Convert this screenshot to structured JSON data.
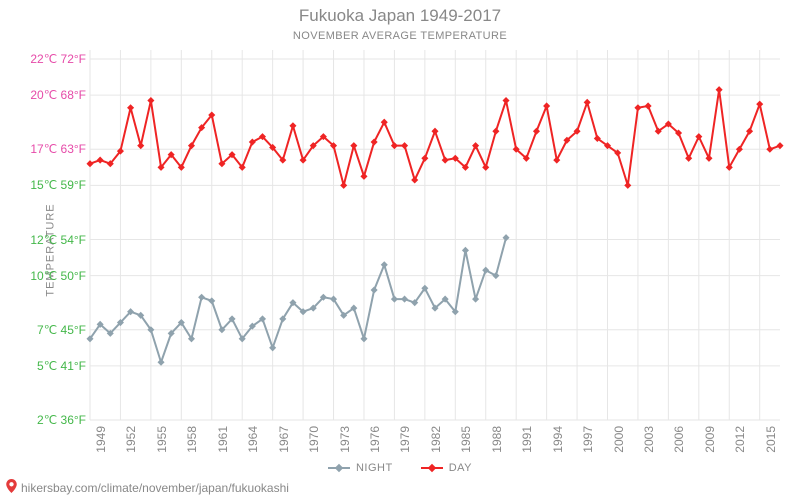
{
  "title": "Fukuoka Japan 1949-2017",
  "subtitle": "NOVEMBER AVERAGE TEMPERATURE",
  "ylabel": "TEMPERATURE",
  "footer_url": "hikersbay.com/climate/november/japan/fukuokashi",
  "legend": {
    "night_label": "NIGHT",
    "day_label": "DAY"
  },
  "chart": {
    "type": "line",
    "background_color": "#ffffff",
    "grid_color": "#e6e6e6",
    "grid": true,
    "title_color": "#888888",
    "tick_text_color": "#888888",
    "title_fontsize": 17,
    "subtitle_fontsize": 11,
    "tick_fontsize": 12,
    "x": {
      "min": 1949,
      "max": 2017,
      "ticks": [
        1949,
        1952,
        1955,
        1958,
        1961,
        1964,
        1967,
        1970,
        1973,
        1976,
        1979,
        1982,
        1985,
        1988,
        1991,
        1994,
        1997,
        2000,
        2003,
        2006,
        2009,
        2012,
        2015
      ],
      "rotation_deg": -90
    },
    "y": {
      "min_c": 2,
      "max_c": 22.5,
      "ticks_c": [
        2,
        5,
        7,
        10,
        12,
        15,
        17,
        20,
        22
      ],
      "tick_labels": [
        "2℃ 36°F",
        "5℃ 41°F",
        "7℃ 45°F",
        "10℃ 50°F",
        "12℃ 54°F",
        "15℃ 59°F",
        "17℃ 63°F",
        "20℃ 68°F",
        "22℃ 72°F"
      ],
      "tick_colors": [
        "#43b749",
        "#43b749",
        "#43b749",
        "#43b749",
        "#43b749",
        "#43b749",
        "#e64aa8",
        "#e64aa8",
        "#e64aa8"
      ]
    },
    "series": {
      "day": {
        "color": "#ef2424",
        "line_width": 2,
        "marker": "diamond",
        "marker_size": 5,
        "x": [
          1949,
          1950,
          1951,
          1952,
          1953,
          1954,
          1955,
          1956,
          1957,
          1958,
          1959,
          1960,
          1961,
          1962,
          1963,
          1964,
          1965,
          1966,
          1967,
          1968,
          1969,
          1970,
          1971,
          1972,
          1973,
          1974,
          1975,
          1976,
          1977,
          1978,
          1979,
          1980,
          1981,
          1982,
          1983,
          1984,
          1985,
          1986,
          1987,
          1988,
          1989,
          1990,
          1991,
          1992,
          1993,
          1994,
          1995,
          1996,
          1997,
          1998,
          1999,
          2000,
          2001,
          2002,
          2003,
          2004,
          2005,
          2006,
          2007,
          2008,
          2009,
          2010,
          2011,
          2012,
          2013,
          2014,
          2015,
          2016,
          2017
        ],
        "y_c": [
          16.2,
          16.4,
          16.2,
          16.9,
          19.3,
          17.2,
          19.7,
          16.0,
          16.7,
          16.0,
          17.2,
          18.2,
          18.9,
          16.2,
          16.7,
          16.0,
          17.4,
          17.7,
          17.1,
          16.4,
          18.3,
          16.4,
          17.2,
          17.7,
          17.2,
          15.0,
          17.2,
          15.5,
          17.4,
          18.5,
          17.2,
          17.2,
          15.3,
          16.5,
          18.0,
          16.4,
          16.5,
          16.0,
          17.2,
          16.0,
          18.0,
          19.7,
          17.0,
          16.5,
          18.0,
          19.4,
          16.4,
          17.5,
          18.0,
          19.6,
          17.6,
          17.2,
          16.8,
          15.0,
          19.3,
          19.4,
          18.0,
          18.4,
          17.9,
          16.5,
          17.7,
          16.5,
          20.3,
          16.0,
          17.0,
          18.0,
          19.5,
          17.0,
          17.2
        ]
      },
      "night": {
        "color": "#8fa2ad",
        "line_width": 2,
        "marker": "diamond",
        "marker_size": 5,
        "x": [
          1949,
          1950,
          1951,
          1952,
          1953,
          1954,
          1955,
          1956,
          1957,
          1958,
          1959,
          1960,
          1961,
          1962,
          1963,
          1964,
          1965,
          1966,
          1967,
          1968,
          1969,
          1970,
          1971,
          1972,
          1973,
          1974,
          1975,
          1976,
          1977,
          1978,
          1979,
          1980,
          1981,
          1982,
          1983,
          1984,
          1985,
          1986,
          1987,
          1988,
          1989,
          1990
        ],
        "y_c": [
          6.5,
          7.3,
          6.8,
          7.4,
          8.0,
          7.8,
          7.0,
          5.2,
          6.8,
          7.4,
          6.5,
          8.8,
          8.6,
          7.0,
          7.6,
          6.5,
          7.2,
          7.6,
          6.0,
          7.6,
          8.5,
          8.0,
          8.2,
          8.8,
          8.7,
          7.8,
          8.2,
          6.5,
          9.2,
          10.6,
          8.7,
          8.7,
          8.5,
          9.3,
          8.2,
          8.7,
          8.0,
          11.4,
          8.7,
          10.3,
          10.0,
          12.1
        ]
      }
    }
  }
}
